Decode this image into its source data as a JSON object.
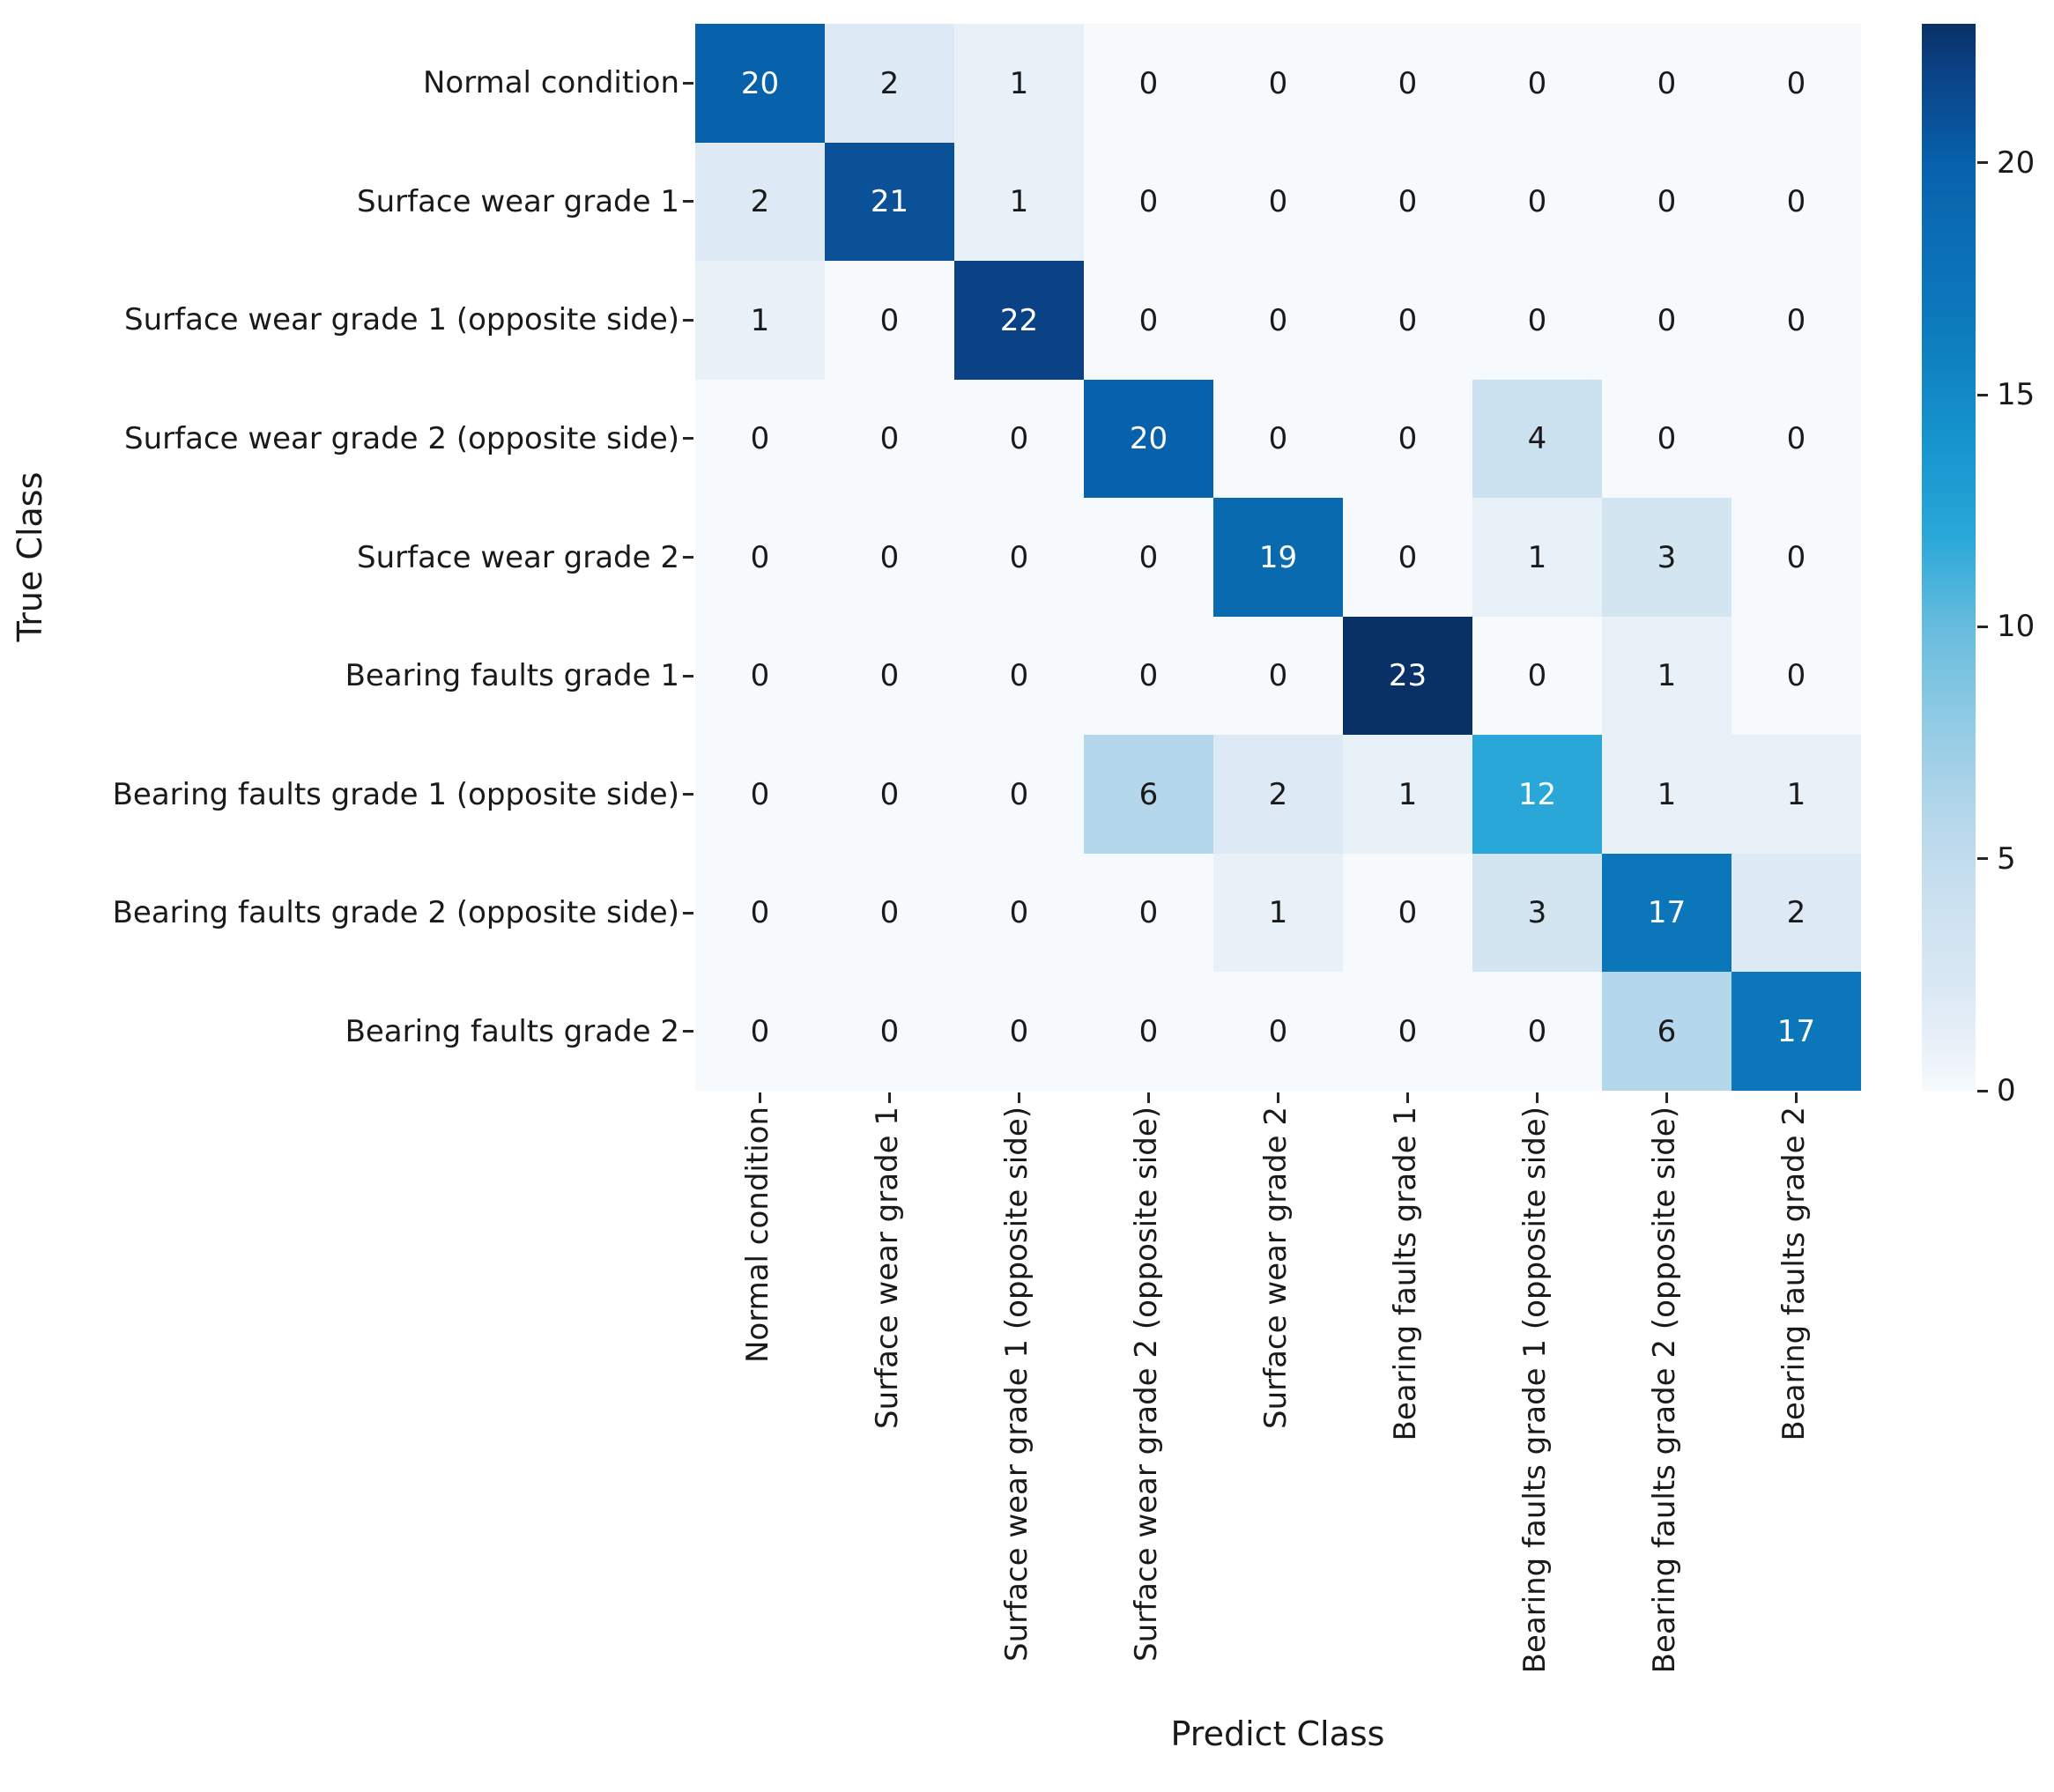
{
  "chart_data": {
    "type": "heatmap",
    "title": "",
    "xlabel": "Predict Class",
    "ylabel": "True Class",
    "x_categories": [
      "Normal condition",
      "Surface wear grade 1",
      "Surface wear grade 1 (opposite side)",
      "Surface wear grade 2 (opposite side)",
      "Surface wear grade 2",
      "Bearing faults grade 1",
      "Bearing faults grade 1 (opposite side)",
      "Bearing faults grade 2 (opposite side)",
      "Bearing faults grade 2"
    ],
    "y_categories": [
      "Normal condition",
      "Surface wear grade 1",
      "Surface wear grade 1 (opposite side)",
      "Surface wear grade 2 (opposite side)",
      "Surface wear grade 2",
      "Bearing faults grade 1",
      "Bearing faults grade 1 (opposite side)",
      "Bearing faults grade 2 (opposite side)",
      "Bearing faults grade 2"
    ],
    "matrix": [
      [
        20,
        2,
        1,
        0,
        0,
        0,
        0,
        0,
        0
      ],
      [
        2,
        21,
        1,
        0,
        0,
        0,
        0,
        0,
        0
      ],
      [
        1,
        0,
        22,
        0,
        0,
        0,
        0,
        0,
        0
      ],
      [
        0,
        0,
        0,
        20,
        0,
        0,
        4,
        0,
        0
      ],
      [
        0,
        0,
        0,
        0,
        19,
        0,
        1,
        3,
        0
      ],
      [
        0,
        0,
        0,
        0,
        0,
        23,
        0,
        1,
        0
      ],
      [
        0,
        0,
        0,
        6,
        2,
        1,
        12,
        1,
        1
      ],
      [
        0,
        0,
        0,
        0,
        1,
        0,
        3,
        17,
        2
      ],
      [
        0,
        0,
        0,
        0,
        0,
        0,
        0,
        6,
        17
      ]
    ],
    "vmin": 0,
    "vmax": 23,
    "colorbar_ticks": [
      0,
      5,
      10,
      15,
      20
    ],
    "legend_position": "right-colorbar",
    "grid": false,
    "colors": {
      "text_dark": "#1a1a1a",
      "text_light": "#ffffff",
      "tick_mark": "#262626",
      "colormap_stops": [
        [
          0.0,
          "#f6fafd"
        ],
        [
          0.045,
          "#e8f0f8"
        ],
        [
          0.09,
          "#dce9f5"
        ],
        [
          0.13,
          "#d4e5f2"
        ],
        [
          0.175,
          "#cce1f0"
        ],
        [
          0.26,
          "#b5d7eb"
        ],
        [
          0.35,
          "#8ecae4"
        ],
        [
          0.435,
          "#67bcde"
        ],
        [
          0.52,
          "#29a7d8"
        ],
        [
          0.61,
          "#1694ce"
        ],
        [
          0.695,
          "#0e80c0"
        ],
        [
          0.74,
          "#0c76ba"
        ],
        [
          0.83,
          "#0a69b0"
        ],
        [
          0.87,
          "#0761ab"
        ],
        [
          0.915,
          "#0a5097"
        ],
        [
          0.955,
          "#0a4386"
        ],
        [
          1.0,
          "#0a3166"
        ]
      ]
    }
  }
}
